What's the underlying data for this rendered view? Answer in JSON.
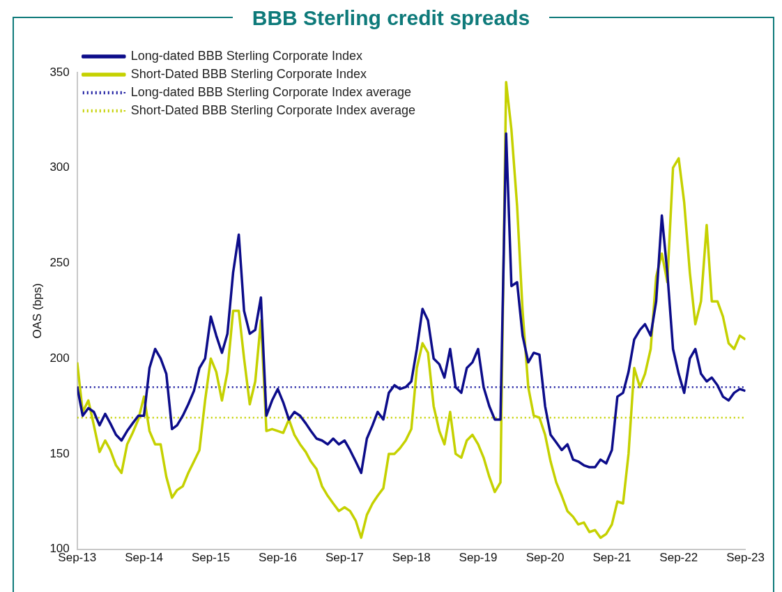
{
  "chart_data": {
    "type": "line",
    "title": "BBB Sterling credit spreads",
    "ylabel": "OAS (bps)",
    "x": [
      "2013-09",
      "2013-10",
      "2013-11",
      "2013-12",
      "2014-01",
      "2014-02",
      "2014-03",
      "2014-04",
      "2014-05",
      "2014-06",
      "2014-07",
      "2014-08",
      "2014-09",
      "2014-10",
      "2014-11",
      "2014-12",
      "2015-01",
      "2015-02",
      "2015-03",
      "2015-04",
      "2015-05",
      "2015-06",
      "2015-07",
      "2015-08",
      "2015-09",
      "2015-10",
      "2015-11",
      "2015-12",
      "2016-01",
      "2016-02",
      "2016-03",
      "2016-04",
      "2016-05",
      "2016-06",
      "2016-07",
      "2016-08",
      "2016-09",
      "2016-10",
      "2016-11",
      "2016-12",
      "2017-01",
      "2017-02",
      "2017-03",
      "2017-04",
      "2017-05",
      "2017-06",
      "2017-07",
      "2017-08",
      "2017-09",
      "2017-10",
      "2017-11",
      "2017-12",
      "2018-01",
      "2018-02",
      "2018-03",
      "2018-04",
      "2018-05",
      "2018-06",
      "2018-07",
      "2018-08",
      "2018-09",
      "2018-10",
      "2018-11",
      "2018-12",
      "2019-01",
      "2019-02",
      "2019-03",
      "2019-04",
      "2019-05",
      "2019-06",
      "2019-07",
      "2019-08",
      "2019-09",
      "2019-10",
      "2019-11",
      "2019-12",
      "2020-01",
      "2020-02",
      "2020-03",
      "2020-04",
      "2020-05",
      "2020-06",
      "2020-07",
      "2020-08",
      "2020-09",
      "2020-10",
      "2020-11",
      "2020-12",
      "2021-01",
      "2021-02",
      "2021-03",
      "2021-04",
      "2021-05",
      "2021-06",
      "2021-07",
      "2021-08",
      "2021-09",
      "2021-10",
      "2021-11",
      "2021-12",
      "2022-01",
      "2022-02",
      "2022-03",
      "2022-04",
      "2022-05",
      "2022-06",
      "2022-07",
      "2022-08",
      "2022-09",
      "2022-10",
      "2022-11",
      "2022-12",
      "2023-01",
      "2023-02",
      "2023-03",
      "2023-04",
      "2023-05",
      "2023-06",
      "2023-07",
      "2023-08",
      "2023-09"
    ],
    "series": [
      {
        "name": "Long-dated BBB Sterling Corporate Index",
        "color": "#0c0c8a",
        "values": [
          185,
          170,
          174,
          172,
          165,
          171,
          166,
          160,
          157,
          162,
          166,
          170,
          170,
          195,
          205,
          200,
          192,
          163,
          165,
          170,
          176,
          183,
          195,
          200,
          222,
          212,
          203,
          213,
          245,
          265,
          225,
          213,
          215,
          232,
          170,
          178,
          184,
          177,
          168,
          172,
          170,
          166,
          162,
          158,
          157,
          155,
          158,
          155,
          157,
          152,
          146,
          140,
          158,
          165,
          172,
          168,
          182,
          186,
          184,
          185,
          188,
          205,
          226,
          220,
          200,
          197,
          190,
          205,
          185,
          182,
          195,
          198,
          205,
          185,
          175,
          168,
          168,
          318,
          238,
          240,
          212,
          198,
          203,
          202,
          175,
          160,
          156,
          152,
          155,
          147,
          146,
          144,
          143,
          143,
          147,
          145,
          152,
          180,
          182,
          193,
          210,
          215,
          218,
          212,
          230,
          275,
          245,
          205,
          192,
          182,
          200,
          205,
          192,
          188,
          190,
          186,
          180,
          178,
          182,
          184,
          183
        ]
      },
      {
        "name": "Short-Dated BBB Sterling Corporate Index",
        "color": "#c5d100",
        "values": [
          198,
          172,
          178,
          165,
          151,
          157,
          152,
          144,
          140,
          155,
          161,
          168,
          180,
          162,
          155,
          155,
          138,
          127,
          131,
          133,
          140,
          146,
          152,
          178,
          200,
          193,
          178,
          193,
          225,
          225,
          200,
          176,
          188,
          220,
          162,
          163,
          162,
          161,
          168,
          160,
          155,
          151,
          146,
          142,
          133,
          128,
          124,
          120,
          122,
          120,
          115,
          106,
          118,
          124,
          128,
          132,
          150,
          150,
          153,
          157,
          163,
          195,
          208,
          203,
          175,
          162,
          155,
          172,
          150,
          148,
          157,
          160,
          155,
          148,
          138,
          130,
          135,
          345,
          320,
          280,
          225,
          185,
          170,
          169,
          160,
          146,
          135,
          128,
          120,
          117,
          113,
          114,
          109,
          110,
          106,
          108,
          113,
          125,
          124,
          150,
          195,
          185,
          192,
          205,
          243,
          255,
          240,
          300,
          305,
          282,
          245,
          218,
          230,
          270,
          230,
          230,
          222,
          208,
          205,
          212,
          210
        ]
      }
    ],
    "ref_lines": [
      {
        "axis": "y",
        "value": 185,
        "label": "Long-dated BBB Sterling Corporate Index average",
        "color": "#1a1aa0",
        "line_style": "dotted"
      },
      {
        "axis": "y",
        "value": 169,
        "label": "Short-Dated BBB Sterling Corporate Index average",
        "color": "#c5d100",
        "line_style": "dotted"
      }
    ],
    "xlim": [
      "2013-09",
      "2023-09"
    ],
    "xticks": [
      {
        "value": "2013-09",
        "label": "Sep-13"
      },
      {
        "value": "2014-09",
        "label": "Sep-14"
      },
      {
        "value": "2015-09",
        "label": "Sep-15"
      },
      {
        "value": "2016-09",
        "label": "Sep-16"
      },
      {
        "value": "2017-09",
        "label": "Sep-17"
      },
      {
        "value": "2018-09",
        "label": "Sep-18"
      },
      {
        "value": "2019-09",
        "label": "Sep-19"
      },
      {
        "value": "2020-09",
        "label": "Sep-20"
      },
      {
        "value": "2021-09",
        "label": "Sep-21"
      },
      {
        "value": "2022-09",
        "label": "Sep-22"
      },
      {
        "value": "2023-09",
        "label": "Sep-23"
      }
    ],
    "ylim": [
      100,
      350
    ],
    "yticks": [
      100,
      150,
      200,
      250,
      300,
      350
    ],
    "grid": false,
    "legend": "top left",
    "line_style": "solid",
    "marker": "none"
  }
}
